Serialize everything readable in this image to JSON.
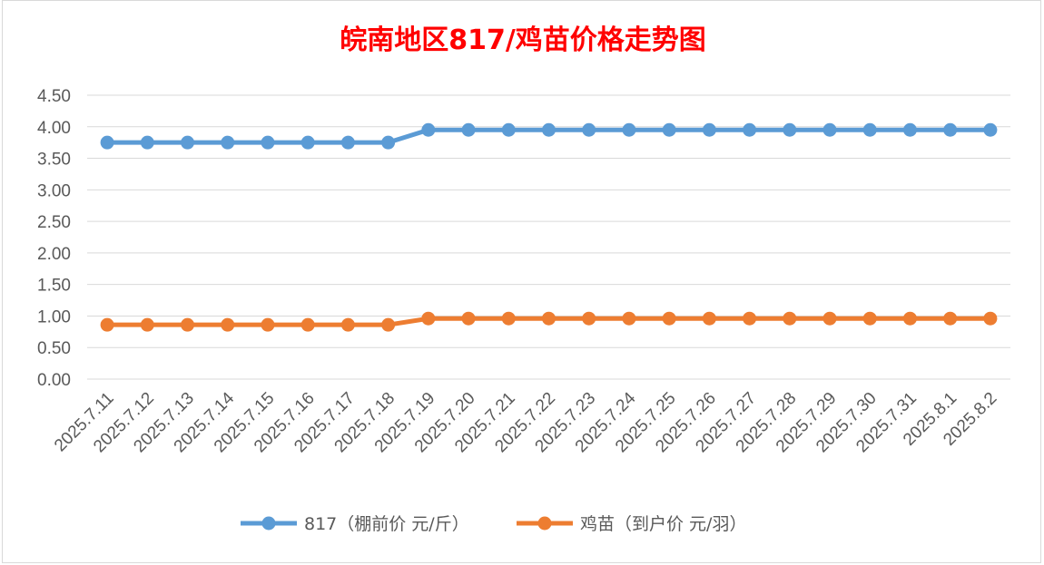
{
  "chart_data": {
    "type": "line",
    "title": "皖南地区817/鸡苗价格走势图",
    "title_color": "#ff0000",
    "xlabel": "",
    "ylabel": "",
    "ylim": [
      0,
      4.5
    ],
    "yticks": [
      "0.00",
      "0.50",
      "1.00",
      "1.50",
      "2.00",
      "2.50",
      "3.00",
      "3.50",
      "4.00",
      "4.50"
    ],
    "grid": true,
    "legend_position": "bottom",
    "categories": [
      "2025.7.11",
      "2025.7.12",
      "2025.7.13",
      "2025.7.14",
      "2025.7.15",
      "2025.7.16",
      "2025.7.17",
      "2025.7.18",
      "2025.7.19",
      "2025.7.20",
      "2025.7.21",
      "2025.7.22",
      "2025.7.23",
      "2025.7.24",
      "2025.7.25",
      "2025.7.26",
      "2025.7.27",
      "2025.7.28",
      "2025.7.29",
      "2025.7.30",
      "2025.7.31",
      "2025.8.1",
      "2025.8.2"
    ],
    "series": [
      {
        "name": "817（棚前价 元/斤）",
        "color": "#5b9bd5",
        "values": [
          3.75,
          3.75,
          3.75,
          3.75,
          3.75,
          3.75,
          3.75,
          3.75,
          3.95,
          3.95,
          3.95,
          3.95,
          3.95,
          3.95,
          3.95,
          3.95,
          3.95,
          3.95,
          3.95,
          3.95,
          3.95,
          3.95,
          3.95
        ]
      },
      {
        "name": "鸡苗（到户价 元/羽）",
        "color": "#ed7d31",
        "values": [
          0.86,
          0.86,
          0.86,
          0.86,
          0.86,
          0.86,
          0.86,
          0.86,
          0.96,
          0.96,
          0.96,
          0.96,
          0.96,
          0.96,
          0.96,
          0.96,
          0.96,
          0.96,
          0.96,
          0.96,
          0.96,
          0.96,
          0.96
        ]
      }
    ]
  }
}
